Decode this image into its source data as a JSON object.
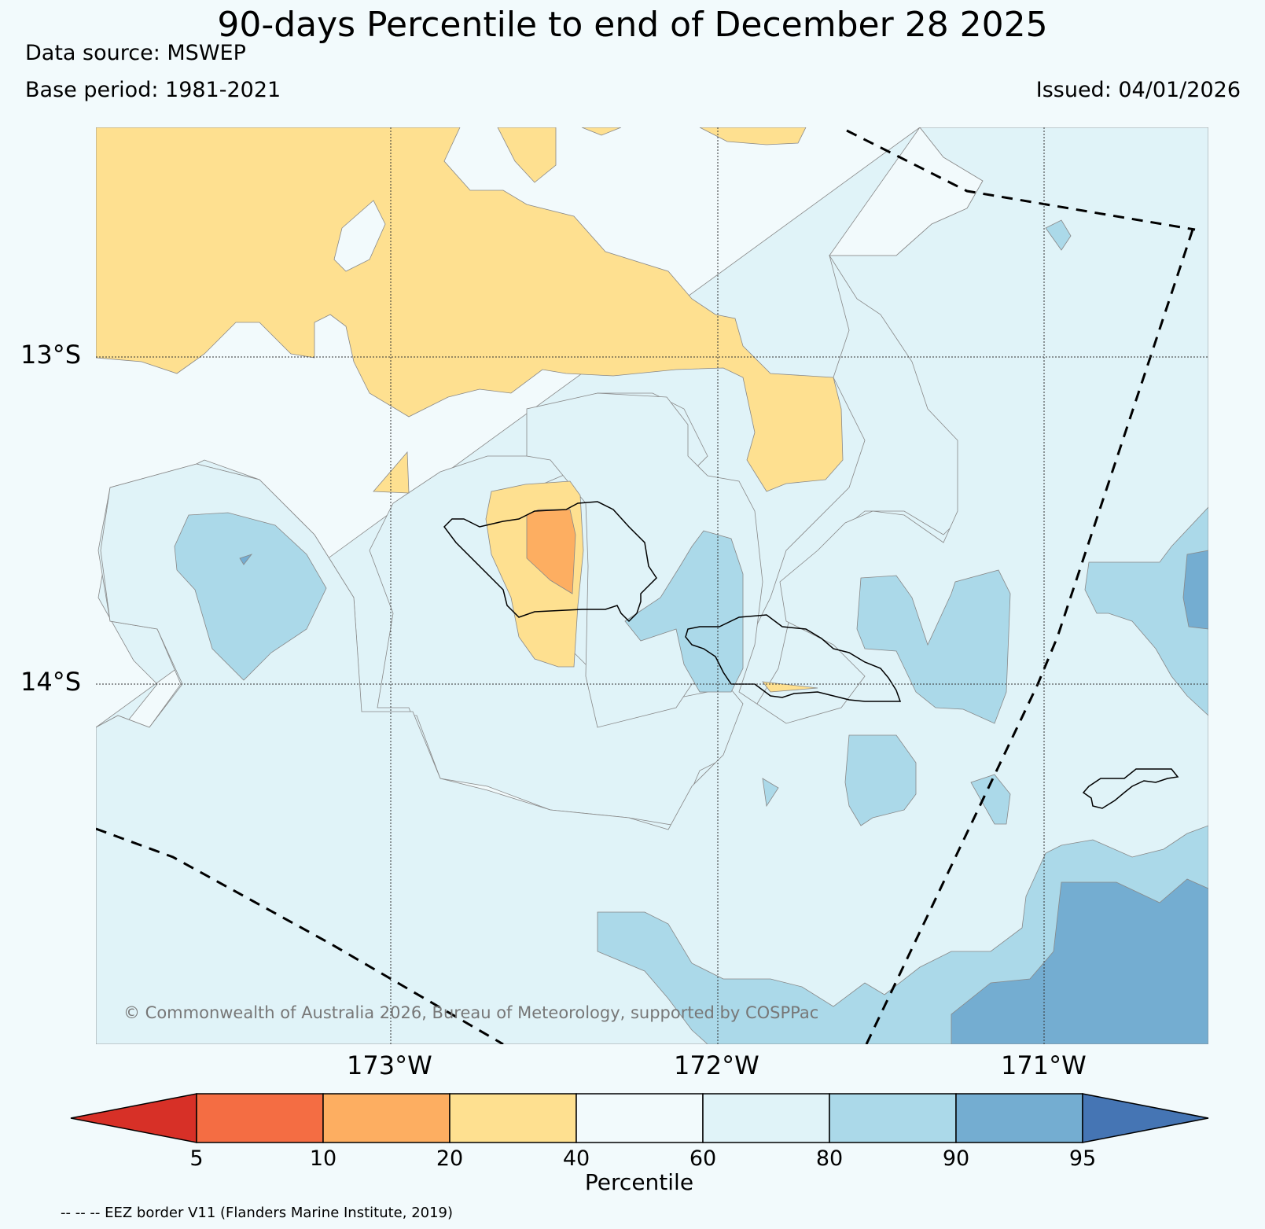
{
  "header": {
    "title": "90-days Percentile to end of December 28 2025",
    "data_source": "Data source: MSWEP",
    "base_period": "Base period: 1981-2021",
    "issued": "Issued: 04/01/2026"
  },
  "map": {
    "lat_labels": [
      "13°S",
      "14°S"
    ],
    "lon_labels": [
      "173°W",
      "172°W",
      "171°W"
    ],
    "copyright": "© Commonwealth of Australia 2026, Bureau of Meteorology, supported by COSPPac"
  },
  "colorbar": {
    "title": "Percentile",
    "ticks": [
      "5",
      "10",
      "20",
      "40",
      "60",
      "80",
      "90",
      "95"
    ],
    "colors": [
      "#d73027",
      "#f46d43",
      "#fdae61",
      "#fee090",
      "#f2fafc",
      "#e0f3f8",
      "#abd9e9",
      "#74add1",
      "#4575b4"
    ]
  },
  "footer": {
    "eez_note": "-- -- -- EEZ border V11 (Flanders Marine Institute, 2019)"
  }
}
